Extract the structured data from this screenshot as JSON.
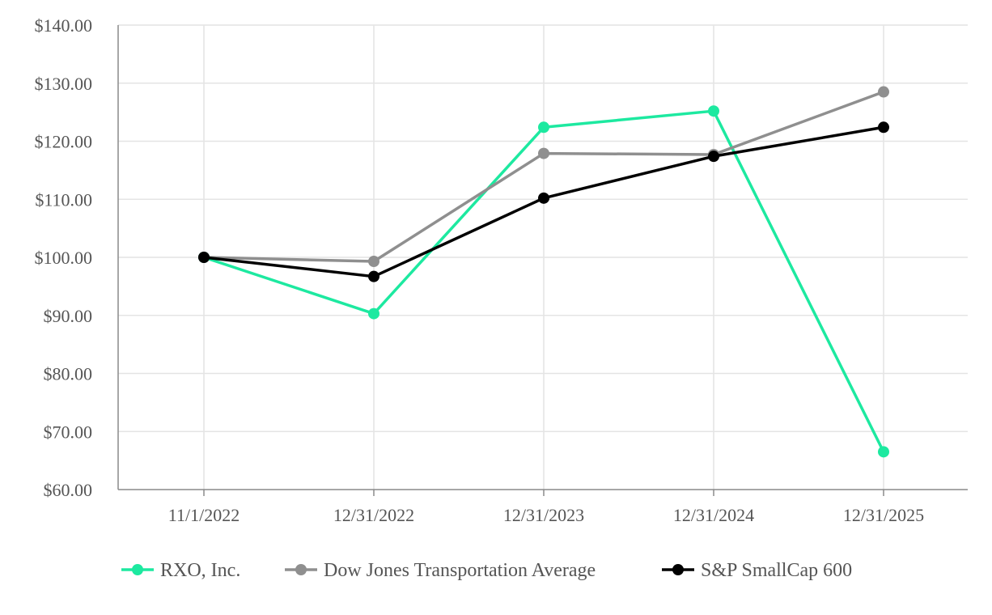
{
  "chart_data": {
    "type": "line",
    "title": "",
    "xlabel": "",
    "ylabel": "",
    "categories": [
      "11/1/2022",
      "12/31/2022",
      "12/31/2023",
      "12/31/2024",
      "12/31/2025"
    ],
    "ylim": [
      60,
      140
    ],
    "yticks": [
      60,
      70,
      80,
      90,
      100,
      110,
      120,
      130,
      140
    ],
    "ytick_labels": [
      "$60.00",
      "$70.00",
      "$80.00",
      "$90.00",
      "$100.00",
      "$110.00",
      "$120.00",
      "$130.00",
      "$140.00"
    ],
    "grid": true,
    "legend_position": "bottom",
    "series": [
      {
        "name": "RXO, Inc.",
        "color": "#1de9a0",
        "values": [
          100.0,
          90.3,
          122.4,
          125.2,
          66.5
        ]
      },
      {
        "name": "Dow Jones Transportation Average",
        "color": "#8f8f8f",
        "values": [
          100.0,
          99.3,
          117.9,
          117.7,
          128.5
        ]
      },
      {
        "name": "S&P SmallCap 600",
        "color": "#000000",
        "values": [
          100.0,
          96.7,
          110.2,
          117.4,
          122.4
        ]
      }
    ]
  }
}
